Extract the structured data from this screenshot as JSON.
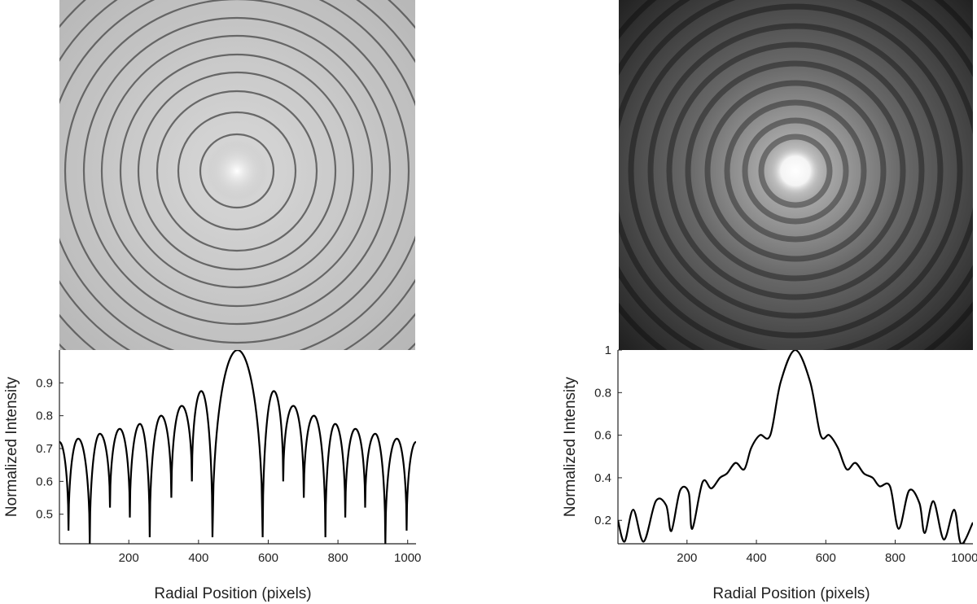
{
  "chart_data": [
    {
      "type": "image",
      "colormap": "gray",
      "ring_count": 13,
      "background": "light",
      "accent_colors": {
        "ring_dark": "#555555",
        "bg": "#bdbdbd",
        "center": "#ffffff"
      }
    },
    {
      "type": "line",
      "xlabel": "Radial Position (pixels)",
      "ylabel": "Normalized Intensity",
      "xlim": [
        1,
        1024
      ],
      "ylim": [
        0.41,
        1.0
      ],
      "xticks": [
        200,
        400,
        600,
        800,
        1000
      ],
      "yticks": [
        0.5,
        0.6,
        0.7,
        0.8,
        0.9
      ],
      "xtick_labels": [
        "200",
        "400",
        "600",
        "800",
        "1000"
      ],
      "ytick_labels": [
        "0.5",
        "0.6",
        "0.7",
        "0.8",
        "0.9"
      ],
      "series": [
        {
          "color": "#000000",
          "center": 512,
          "minima": [
            [
              27,
              0.45
            ],
            [
              88,
              0.41
            ],
            [
              146,
              0.52
            ],
            [
              203,
              0.49
            ],
            [
              260,
              0.43
            ],
            [
              322,
              0.55
            ],
            [
              381,
              0.6
            ],
            [
              440,
              0.43
            ],
            [
              584,
              0.43
            ],
            [
              643,
              0.6
            ],
            [
              702,
              0.55
            ],
            [
              764,
              0.43
            ],
            [
              821,
              0.49
            ],
            [
              878,
              0.52
            ],
            [
              936,
              0.41
            ],
            [
              997,
              0.45
            ]
          ],
          "maxima": [
            [
              1,
              0.72
            ],
            [
              55,
              0.73
            ],
            [
              117,
              0.745
            ],
            [
              174,
              0.76
            ],
            [
              232,
              0.775
            ],
            [
              293,
              0.8
            ],
            [
              352,
              0.83
            ],
            [
              408,
              0.875
            ],
            [
              512,
              1.0
            ],
            [
              616,
              0.875
            ],
            [
              672,
              0.83
            ],
            [
              731,
              0.8
            ],
            [
              792,
              0.775
            ],
            [
              850,
              0.76
            ],
            [
              907,
              0.745
            ],
            [
              969,
              0.73
            ],
            [
              1024,
              0.72
            ]
          ]
        }
      ],
      "grid": false
    },
    {
      "type": "image",
      "colormap": "gray",
      "ring_count": 11,
      "background": "dark",
      "accent_colors": {
        "bg": "#1c1c1c",
        "center": "#ffffff"
      }
    },
    {
      "type": "line",
      "xlabel": "Radial Position (pixels)",
      "ylabel": "Normalized Intensity",
      "xlim": [
        1,
        1024
      ],
      "ylim": [
        0.09,
        1.0
      ],
      "xticks": [
        200,
        400,
        600,
        800,
        1000
      ],
      "yticks": [
        0.2,
        0.4,
        0.6,
        0.8,
        1.0
      ],
      "xtick_labels": [
        "200",
        "400",
        "600",
        "800",
        "1000"
      ],
      "ytick_labels": [
        "0.2",
        "0.4",
        "0.6",
        "0.8",
        "1"
      ],
      "series": [
        {
          "color": "#000000",
          "x": [
            1,
            20,
            45,
            75,
            110,
            140,
            155,
            180,
            205,
            215,
            245,
            270,
            295,
            315,
            340,
            365,
            385,
            410,
            440,
            470,
            512,
            555,
            585,
            610,
            635,
            660,
            685,
            710,
            735,
            755,
            785,
            810,
            840,
            870,
            885,
            910,
            940,
            970,
            990,
            1024
          ],
          "y": [
            0.2,
            0.1,
            0.25,
            0.1,
            0.29,
            0.27,
            0.15,
            0.34,
            0.33,
            0.16,
            0.38,
            0.35,
            0.4,
            0.42,
            0.47,
            0.44,
            0.54,
            0.6,
            0.6,
            0.85,
            1.0,
            0.85,
            0.6,
            0.6,
            0.54,
            0.44,
            0.47,
            0.42,
            0.4,
            0.36,
            0.36,
            0.16,
            0.34,
            0.28,
            0.14,
            0.29,
            0.11,
            0.25,
            0.09,
            0.19
          ]
        }
      ],
      "grid": false
    }
  ]
}
